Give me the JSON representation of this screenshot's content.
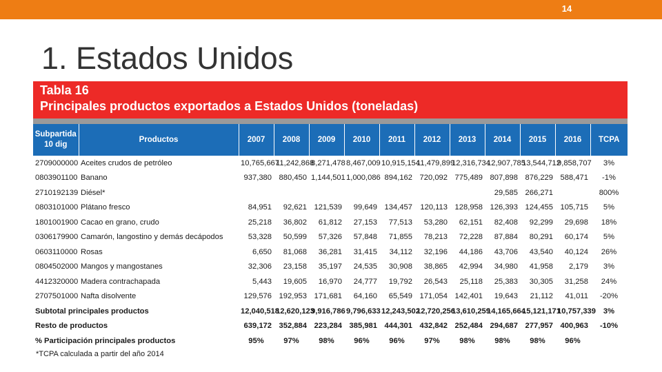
{
  "slide": {
    "page_number": "14",
    "title": "1. Estados Unidos",
    "accent_color": "#ee7d14"
  },
  "table": {
    "label": "Tabla 16",
    "caption": "Principales productos exportados a Estados Unidos (toneladas)",
    "header_color": "#1c6db7",
    "band_color": "#ed2a27",
    "headers": {
      "subpartida": "Subpartida",
      "subpartida2": "10 dig",
      "productos": "Productos",
      "years": [
        "2007",
        "2008",
        "2009",
        "2010",
        "2011",
        "2012",
        "2013",
        "2014",
        "2015",
        "2016"
      ],
      "tcpa": "TCPA"
    },
    "rows": [
      {
        "code": "2709000000",
        "product": "Aceites crudos de petróleo",
        "values": [
          "10,765,667",
          "11,242,868",
          "8,271,478",
          "8,467,009",
          "10,915,154",
          "11,479,899",
          "12,316,734",
          "12,907,785",
          "13,544,712",
          "9,858,707"
        ],
        "tcpa": "3%"
      },
      {
        "code": "0803901100",
        "product": "Banano",
        "values": [
          "937,380",
          "880,450",
          "1,144,501",
          "1,000,086",
          "894,162",
          "720,092",
          "775,489",
          "807,898",
          "876,229",
          "588,471"
        ],
        "tcpa": "-1%"
      },
      {
        "code": "2710192139",
        "product": "Diésel*",
        "values": [
          "",
          "",
          "",
          "",
          "",
          "",
          "",
          "29,585",
          "266,271",
          ""
        ],
        "tcpa": "800%"
      },
      {
        "code": "0803101000",
        "product": "Plátano fresco",
        "values": [
          "84,951",
          "92,621",
          "121,539",
          "99,649",
          "134,457",
          "120,113",
          "128,958",
          "126,393",
          "124,455",
          "105,715"
        ],
        "tcpa": "5%"
      },
      {
        "code": "1801001900",
        "product": "Cacao en grano, crudo",
        "values": [
          "25,218",
          "36,802",
          "61,812",
          "27,153",
          "77,513",
          "53,280",
          "62,151",
          "82,408",
          "92,299",
          "29,698"
        ],
        "tcpa": "18%"
      },
      {
        "code": "0306179900",
        "product": "Camarón, langostino y demás decápodos",
        "values": [
          "53,328",
          "50,599",
          "57,326",
          "57,848",
          "71,855",
          "78,213",
          "72,228",
          "87,884",
          "80,291",
          "60,174"
        ],
        "tcpa": "5%"
      },
      {
        "code": "0603110000",
        "product": "Rosas",
        "values": [
          "6,650",
          "81,068",
          "36,281",
          "31,415",
          "34,112",
          "32,196",
          "44,186",
          "43,706",
          "43,540",
          "40,124"
        ],
        "tcpa": "26%"
      },
      {
        "code": "0804502000",
        "product": "Mangos y mangostanes",
        "values": [
          "32,306",
          "23,158",
          "35,197",
          "24,535",
          "30,908",
          "38,865",
          "42,994",
          "34,980",
          "41,958",
          "2,179"
        ],
        "tcpa": "3%"
      },
      {
        "code": "4412320000",
        "product": "Madera contrachapada",
        "values": [
          "5,443",
          "19,605",
          "16,970",
          "24,777",
          "19,792",
          "26,543",
          "25,118",
          "25,383",
          "30,305",
          "31,258"
        ],
        "tcpa": "24%"
      },
      {
        "code": "2707501000",
        "product": "Nafta disolvente",
        "values": [
          "129,576",
          "192,953",
          "171,681",
          "64,160",
          "65,549",
          "171,054",
          "142,401",
          "19,643",
          "21,112",
          "41,011"
        ],
        "tcpa": "-20%"
      }
    ],
    "summary": [
      {
        "label": "Subtotal principales productos",
        "values": [
          "12,040,518",
          "12,620,123",
          "9,916,786",
          "9,796,633",
          "12,243,502",
          "12,720,256",
          "13,610,259",
          "14,165,664",
          "15,121,171",
          "10,757,339"
        ],
        "tcpa": "3%"
      },
      {
        "label": "Resto de productos",
        "values": [
          "639,172",
          "352,884",
          "223,284",
          "385,981",
          "444,301",
          "432,842",
          "252,484",
          "294,687",
          "277,957",
          "400,963"
        ],
        "tcpa": "-10%"
      },
      {
        "label": "% Participación principales productos",
        "values": [
          "95%",
          "97%",
          "98%",
          "96%",
          "96%",
          "97%",
          "98%",
          "98%",
          "98%",
          "96%"
        ],
        "tcpa": ""
      }
    ],
    "footnote": "*TCPA calculada a partir del año 2014"
  }
}
